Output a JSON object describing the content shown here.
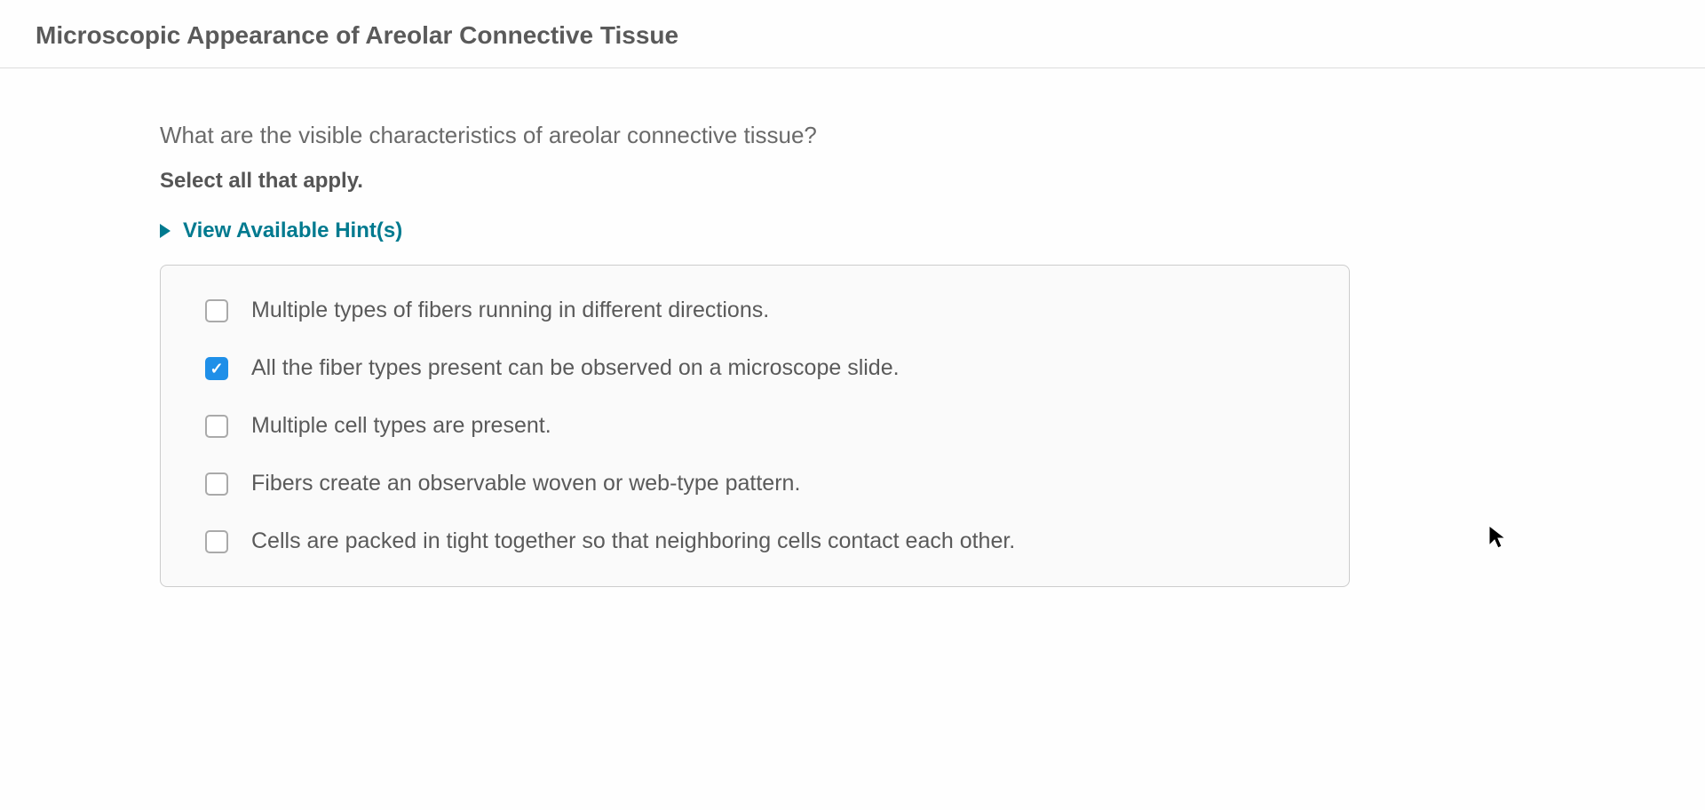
{
  "title": "Microscopic Appearance of Areolar Connective Tissue",
  "question": "What are the visible characteristics of areolar connective tissue?",
  "instruction": "Select all that apply.",
  "hints_label": "View Available Hint(s)",
  "options": [
    {
      "label": "Multiple types of fibers running in different directions.",
      "checked": false
    },
    {
      "label": "All the fiber types present can be observed on a microscope slide.",
      "checked": true
    },
    {
      "label": "Multiple cell types are present.",
      "checked": false
    },
    {
      "label": "Fibers create an observable woven or web-type pattern.",
      "checked": false
    },
    {
      "label": "Cells are packed in tight together so that neighboring cells contact each other.",
      "checked": false
    }
  ],
  "colors": {
    "title_color": "#5a5a5a",
    "link_color": "#007a8f",
    "checkbox_checked_bg": "#1f8fe8",
    "option_text": "#5a5a5a",
    "border": "#cccccc",
    "box_bg": "#fafafa"
  }
}
